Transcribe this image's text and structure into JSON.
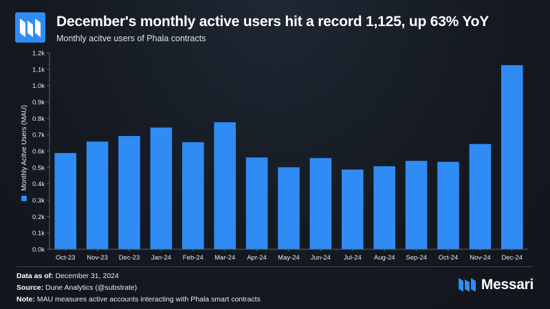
{
  "header": {
    "title": "December's monthly active users hit a record 1,125, up 63% YoY",
    "subtitle": "Monthly acitve users of Phala contracts"
  },
  "colors": {
    "accent": "#2F8CF5",
    "axis": "#5a6472",
    "tick_text": "#e6eaef"
  },
  "icons": {
    "header_logo": "messari-logo-icon",
    "brand_logo": "messari-logo-icon"
  },
  "chart_data": {
    "type": "bar",
    "title": "Monthly acitve users of Phala contracts",
    "xlabel": "",
    "ylabel": "Monthly Acitve Users (MAU)",
    "ylim": [
      0,
      1200
    ],
    "yticks": [
      0,
      100,
      200,
      300,
      400,
      500,
      600,
      700,
      800,
      900,
      1000,
      1100,
      1200
    ],
    "ytick_labels": [
      "0.0k",
      "0.1k",
      "0.2k",
      "0.3k",
      "0.4k",
      "0.5k",
      "0.6k",
      "0.7k",
      "0.8k",
      "0.9k",
      "1.0k",
      "1.1k",
      "1.2k"
    ],
    "legend": [
      "Monthly Acitve Users (MAU)"
    ],
    "legend_position": "left-vertical",
    "grid": false,
    "categories": [
      "Oct-23",
      "Nov-23",
      "Dec-23",
      "Jan-24",
      "Feb-24",
      "Mar-24",
      "Apr-24",
      "May-24",
      "Jun-24",
      "Jul-24",
      "Aug-24",
      "Sep-24",
      "Oct-24",
      "Nov-24",
      "Dec-24"
    ],
    "series": [
      {
        "name": "Monthly Acitve Users (MAU)",
        "values": [
          588,
          658,
          692,
          744,
          654,
          776,
          561,
          501,
          557,
          487,
          507,
          540,
          534,
          643,
          1125
        ]
      }
    ]
  },
  "footer": {
    "date_label": "Data as of:",
    "date_value": "December 31, 2024",
    "source_label": "Source:",
    "source_value": "Dune Analytics (@substrate)",
    "note_label": "Note:",
    "note_value": "MAU measures active accounts interacting with Phala smart contracts"
  },
  "brand": {
    "name": "Messari"
  }
}
